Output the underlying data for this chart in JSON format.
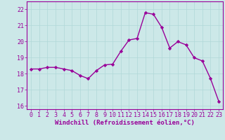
{
  "x": [
    0,
    1,
    2,
    3,
    4,
    5,
    6,
    7,
    8,
    9,
    10,
    11,
    12,
    13,
    14,
    15,
    16,
    17,
    18,
    19,
    20,
    21,
    22,
    23
  ],
  "y": [
    18.3,
    18.3,
    18.4,
    18.4,
    18.3,
    18.2,
    17.9,
    17.7,
    18.2,
    18.55,
    18.6,
    19.4,
    20.1,
    20.2,
    21.8,
    21.7,
    20.9,
    19.6,
    20.0,
    19.8,
    19.0,
    18.8,
    17.7,
    16.3
  ],
  "line_color": "#990099",
  "marker": "D",
  "marker_size": 2.2,
  "bg_color": "#cce8e8",
  "grid_color": "#b0d8d8",
  "xlabel": "Windchill (Refroidissement éolien,°C)",
  "xlabel_color": "#990099",
  "tick_color": "#990099",
  "ylim": [
    15.8,
    22.5
  ],
  "yticks": [
    16,
    17,
    18,
    19,
    20,
    21,
    22
  ],
  "xlim": [
    -0.5,
    23.5
  ],
  "xticks": [
    0,
    1,
    2,
    3,
    4,
    5,
    6,
    7,
    8,
    9,
    10,
    11,
    12,
    13,
    14,
    15,
    16,
    17,
    18,
    19,
    20,
    21,
    22,
    23
  ],
  "linewidth": 1.0,
  "label_fontsize": 6.0,
  "xlabel_fontsize": 6.5
}
